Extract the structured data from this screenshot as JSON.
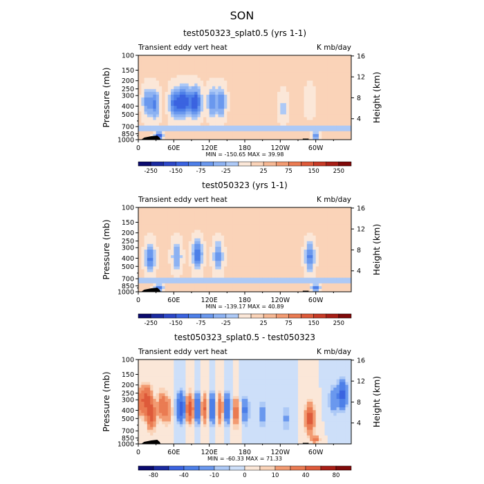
{
  "page_title": "SON",
  "chart_data": [
    {
      "type": "heatmap",
      "title": "test050323_splat0.5 (yrs 1-1)",
      "left_label": "Transient eddy vert heat",
      "right_label": "K mb/day",
      "ylabel": "Pressure (mb)",
      "ylabel_right": "Height (km)",
      "x_ticks": [
        "0",
        "60E",
        "120E",
        "180",
        "120W",
        "60W"
      ],
      "x_tick_values": [
        0,
        60,
        120,
        180,
        240,
        300
      ],
      "xlim": [
        0,
        360
      ],
      "y_ticks": [
        "100",
        "150",
        "200",
        "250",
        "300",
        "400",
        "500",
        "700",
        "850",
        "1000"
      ],
      "y_tick_values": [
        100,
        150,
        200,
        250,
        300,
        400,
        500,
        700,
        850,
        1000
      ],
      "ylim": [
        100,
        1000
      ],
      "height_ticks": [
        "16",
        "12",
        "8",
        "4"
      ],
      "height_tick_values": [
        16,
        12,
        8,
        4
      ],
      "stats": "MIN = -150.65   MAX =  39.98",
      "colorbar": {
        "labels": [
          "-250",
          "-150",
          "-75",
          "-25",
          "25",
          "75",
          "150",
          "250"
        ],
        "levels": [
          -300,
          -250,
          -200,
          -150,
          -100,
          -75,
          -50,
          -25,
          -10,
          10,
          25,
          50,
          75,
          100,
          150,
          200,
          250,
          300
        ]
      },
      "features": [
        {
          "lon": 15,
          "p": 360,
          "amp": -75
        },
        {
          "lon": 28,
          "p": 380,
          "amp": -90
        },
        {
          "lon": 35,
          "p": 900,
          "amp": -150
        },
        {
          "lon": 60,
          "p": 370,
          "amp": -100
        },
        {
          "lon": 70,
          "p": 360,
          "amp": -110
        },
        {
          "lon": 80,
          "p": 350,
          "amp": -120
        },
        {
          "lon": 92,
          "p": 360,
          "amp": -100
        },
        {
          "lon": 100,
          "p": 360,
          "amp": -100
        },
        {
          "lon": 125,
          "p": 360,
          "amp": -90
        },
        {
          "lon": 140,
          "p": 360,
          "amp": -90
        },
        {
          "lon": 245,
          "p": 420,
          "amp": -30
        },
        {
          "lon": 290,
          "p": 350,
          "amp": -25
        },
        {
          "lon": 300,
          "p": 900,
          "amp": -100
        }
      ],
      "min": -150.65,
      "max": 39.98
    },
    {
      "type": "heatmap",
      "title": "test050323 (yrs 1-1)",
      "left_label": "Transient eddy vert heat",
      "right_label": "K mb/day",
      "ylabel": "Pressure (mb)",
      "ylabel_right": "Height (km)",
      "x_ticks": [
        "0",
        "60E",
        "120E",
        "180",
        "120W",
        "60W"
      ],
      "x_tick_values": [
        0,
        60,
        120,
        180,
        240,
        300
      ],
      "xlim": [
        0,
        360
      ],
      "y_ticks": [
        "100",
        "150",
        "200",
        "250",
        "300",
        "400",
        "500",
        "700",
        "850",
        "1000"
      ],
      "y_tick_values": [
        100,
        150,
        200,
        250,
        300,
        400,
        500,
        700,
        850,
        1000
      ],
      "ylim": [
        100,
        1000
      ],
      "height_ticks": [
        "16",
        "12",
        "8",
        "4"
      ],
      "height_tick_values": [
        16,
        12,
        8,
        4
      ],
      "stats": "MIN = -139.17   MAX =  40.89",
      "colorbar": {
        "labels": [
          "-250",
          "-150",
          "-75",
          "-25",
          "25",
          "75",
          "150",
          "250"
        ],
        "levels": [
          -300,
          -250,
          -200,
          -150,
          -100,
          -75,
          -50,
          -25,
          -10,
          10,
          25,
          50,
          75,
          100,
          150,
          200,
          250,
          300
        ]
      },
      "features": [
        {
          "lon": 20,
          "p": 400,
          "amp": -100
        },
        {
          "lon": 35,
          "p": 900,
          "amp": -130
        },
        {
          "lon": 65,
          "p": 380,
          "amp": -70
        },
        {
          "lon": 100,
          "p": 360,
          "amp": -120
        },
        {
          "lon": 135,
          "p": 380,
          "amp": -80
        },
        {
          "lon": 290,
          "p": 380,
          "amp": -100
        },
        {
          "lon": 300,
          "p": 900,
          "amp": -120
        }
      ],
      "min": -139.17,
      "max": 40.89
    },
    {
      "type": "heatmap",
      "title": "test050323_splat0.5 - test050323",
      "left_label": "Transient eddy vert heat",
      "right_label": "K mb/day",
      "ylabel": "Pressure (mb)",
      "ylabel_right": "Height (km)",
      "x_ticks": [
        "0",
        "60E",
        "120E",
        "180",
        "120W",
        "60W"
      ],
      "x_tick_values": [
        0,
        60,
        120,
        180,
        240,
        300
      ],
      "xlim": [
        0,
        360
      ],
      "y_ticks": [
        "100",
        "150",
        "200",
        "250",
        "300",
        "400",
        "500",
        "700",
        "850",
        "1000"
      ],
      "y_tick_values": [
        100,
        150,
        200,
        250,
        300,
        400,
        500,
        700,
        850,
        1000
      ],
      "ylim": [
        100,
        1000
      ],
      "height_ticks": [
        "16",
        "12",
        "8",
        "4"
      ],
      "height_tick_values": [
        16,
        12,
        8,
        4
      ],
      "stats": "MIN = -60.33   MAX =  71.33",
      "colorbar": {
        "labels": [
          "-80",
          "-40",
          "-10",
          "0",
          "10",
          "40",
          "80"
        ],
        "levels": [
          -100,
          -80,
          -60,
          -40,
          -20,
          -10,
          -5,
          0,
          5,
          10,
          20,
          40,
          60,
          80,
          100
        ]
      },
      "features": [
        {
          "lon": 5,
          "p": 320,
          "amp": 30
        },
        {
          "lon": 15,
          "p": 300,
          "amp": 45
        },
        {
          "lon": 22,
          "p": 450,
          "amp": 50
        },
        {
          "lon": 40,
          "p": 350,
          "amp": 30
        },
        {
          "lon": 50,
          "p": 400,
          "amp": 20
        },
        {
          "lon": 72,
          "p": 370,
          "amp": -55
        },
        {
          "lon": 88,
          "p": 380,
          "amp": 55
        },
        {
          "lon": 100,
          "p": 380,
          "amp": -50
        },
        {
          "lon": 112,
          "p": 380,
          "amp": 45
        },
        {
          "lon": 125,
          "p": 380,
          "amp": -45
        },
        {
          "lon": 138,
          "p": 380,
          "amp": 40
        },
        {
          "lon": 150,
          "p": 380,
          "amp": -45
        },
        {
          "lon": 165,
          "p": 420,
          "amp": 30
        },
        {
          "lon": 180,
          "p": 400,
          "amp": -25
        },
        {
          "lon": 210,
          "p": 450,
          "amp": -15
        },
        {
          "lon": 250,
          "p": 500,
          "amp": -12
        },
        {
          "lon": 290,
          "p": 500,
          "amp": 55
        },
        {
          "lon": 300,
          "p": 880,
          "amp": 40
        },
        {
          "lon": 345,
          "p": 260,
          "amp": -50
        },
        {
          "lon": 330,
          "p": 300,
          "amp": -20
        }
      ],
      "min": -60.33,
      "max": 71.33
    }
  ]
}
